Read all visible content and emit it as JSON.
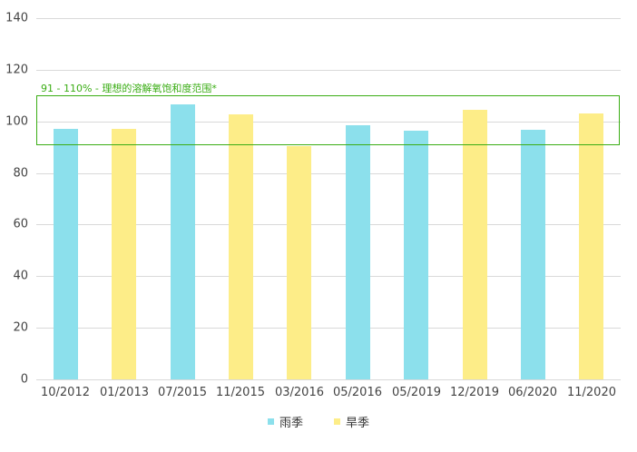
{
  "chart_data": {
    "type": "bar",
    "title": "",
    "xlabel": "",
    "ylabel": "",
    "ylim": [
      0,
      140
    ],
    "yticks": [
      0,
      20,
      40,
      60,
      80,
      100,
      120,
      140
    ],
    "grid": true,
    "legend_position": "bottom",
    "categories": [
      "10/2012",
      "01/2013",
      "07/2015",
      "11/2015",
      "03/2016",
      "05/2016",
      "05/2019",
      "12/2019",
      "06/2020",
      "11/2020"
    ],
    "values": [
      97,
      97.2,
      106.7,
      102.8,
      90.5,
      98.6,
      96.5,
      104.6,
      96.8,
      103.2
    ],
    "season": [
      "雨季",
      "旱季",
      "雨季",
      "旱季",
      "旱季",
      "雨季",
      "雨季",
      "旱季",
      "雨季",
      "旱季"
    ],
    "series": [
      {
        "name": "雨季",
        "color": "#8ce0ec"
      },
      {
        "name": "旱季",
        "color": "#fded88"
      }
    ],
    "annotations": [
      {
        "type": "range_box",
        "y_from": 91,
        "y_to": 110,
        "label": "91 - 110% - 理想的溶解氧饱和度范围*",
        "color": "#3aad14"
      }
    ]
  },
  "legend": {
    "rainy": "雨季",
    "dry": "旱季"
  },
  "range_label": "91 - 110% - 理想的溶解氧饱和度范围*"
}
